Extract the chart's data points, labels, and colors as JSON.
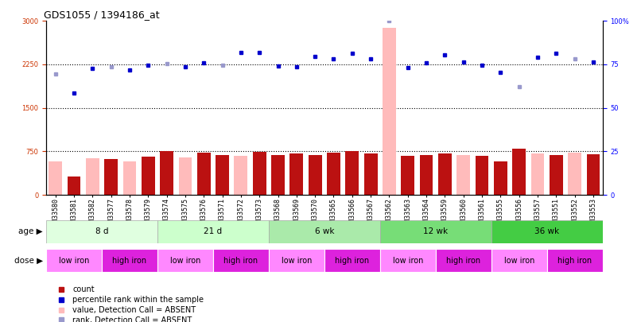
{
  "title": "GDS1055 / 1394186_at",
  "samples": [
    "GSM33580",
    "GSM33581",
    "GSM33582",
    "GSM33577",
    "GSM33578",
    "GSM33579",
    "GSM33574",
    "GSM33575",
    "GSM33576",
    "GSM33571",
    "GSM33572",
    "GSM33573",
    "GSM33568",
    "GSM33569",
    "GSM33570",
    "GSM33565",
    "GSM33566",
    "GSM33567",
    "GSM33562",
    "GSM33563",
    "GSM33564",
    "GSM33559",
    "GSM33560",
    "GSM33561",
    "GSM33555",
    "GSM33556",
    "GSM33557",
    "GSM33551",
    "GSM33552",
    "GSM33553"
  ],
  "count_values": [
    580,
    310,
    630,
    620,
    580,
    660,
    750,
    640,
    730,
    690,
    670,
    740,
    690,
    710,
    690,
    730,
    750,
    720,
    2880,
    670,
    690,
    710,
    690,
    670,
    580,
    790,
    710,
    690,
    730,
    700
  ],
  "absent_flags": [
    true,
    false,
    true,
    false,
    true,
    false,
    false,
    true,
    false,
    false,
    true,
    false,
    false,
    false,
    false,
    false,
    false,
    false,
    true,
    false,
    false,
    false,
    true,
    false,
    false,
    false,
    true,
    false,
    true,
    false
  ],
  "rank_values": [
    69.7,
    58.7,
    72.7,
    73.7,
    72.0,
    74.7,
    75.3,
    73.7,
    76.0,
    74.7,
    82.0,
    81.7,
    74.3,
    73.7,
    79.7,
    78.0,
    81.3,
    78.0,
    100.0,
    73.3,
    76.0,
    80.7,
    76.3,
    74.7,
    70.3,
    62.3,
    79.3,
    81.3,
    78.3,
    76.3
  ],
  "rank_absent_flags": [
    true,
    false,
    false,
    true,
    false,
    false,
    true,
    false,
    false,
    true,
    false,
    false,
    false,
    false,
    false,
    false,
    false,
    false,
    true,
    false,
    false,
    false,
    false,
    false,
    false,
    true,
    false,
    false,
    true,
    false
  ],
  "age_groups": [
    {
      "label": "8 d",
      "start": 0,
      "end": 6,
      "color_light": "#e8ffe8",
      "color_dark": "#ccffcc"
    },
    {
      "label": "21 d",
      "start": 6,
      "end": 12,
      "color_light": "#ccffcc",
      "color_dark": "#aaffaa"
    },
    {
      "label": "6 wk",
      "start": 12,
      "end": 18,
      "color_light": "#aaf0aa",
      "color_dark": "#88ee88"
    },
    {
      "label": "12 wk",
      "start": 18,
      "end": 24,
      "color_light": "#88ee88",
      "color_dark": "#66dd66"
    },
    {
      "label": "36 wk",
      "start": 24,
      "end": 30,
      "color_light": "#55cc55",
      "color_dark": "#33bb33"
    }
  ],
  "dose_groups": [
    {
      "label": "low iron",
      "start": 0,
      "end": 3
    },
    {
      "label": "high iron",
      "start": 3,
      "end": 6
    },
    {
      "label": "low iron",
      "start": 6,
      "end": 9
    },
    {
      "label": "high iron",
      "start": 9,
      "end": 12
    },
    {
      "label": "low iron",
      "start": 12,
      "end": 15
    },
    {
      "label": "high iron",
      "start": 15,
      "end": 18
    },
    {
      "label": "low iron",
      "start": 18,
      "end": 21
    },
    {
      "label": "high iron",
      "start": 21,
      "end": 24
    },
    {
      "label": "low iron",
      "start": 24,
      "end": 27
    },
    {
      "label": "high iron",
      "start": 27,
      "end": 30
    }
  ],
  "left_ylim": [
    0,
    3000
  ],
  "right_ylim": [
    0,
    100
  ],
  "left_yticks": [
    0,
    750,
    1500,
    2250,
    3000
  ],
  "right_yticks": [
    0,
    25,
    50,
    75,
    100
  ],
  "bar_color_present": "#bb1111",
  "bar_color_absent": "#ffbbbb",
  "dot_color_present": "#0000cc",
  "dot_color_absent": "#9999cc",
  "age_colors": [
    "#e0ffe0",
    "#ccffcc",
    "#aaeaaa",
    "#77dd77",
    "#44cc44"
  ],
  "dose_color_low": "#ff88ff",
  "dose_color_high": "#dd22dd",
  "title_fontsize": 9,
  "tick_fontsize": 6,
  "label_fontsize": 7.5,
  "legend_fontsize": 7
}
